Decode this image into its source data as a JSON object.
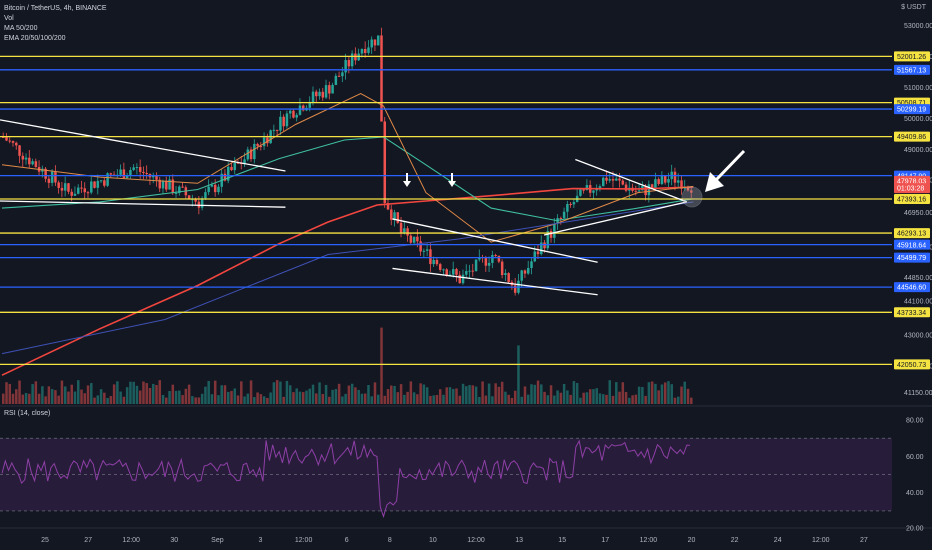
{
  "header": {
    "symbol": "Bitcoin / TetherUS, 4h, BINANCE",
    "vol": "Vol",
    "ma": "MA 50/200",
    "ema": "EMA 20/50/100/200",
    "unit": "$ USDT"
  },
  "rsi_title": "RSI (14, close)",
  "chart_data": {
    "type": "candlestick",
    "price_axis": {
      "range": [
        40900,
        53500
      ],
      "tick_labels": [
        "53000.00",
        "52000.00",
        "51000.00",
        "50000.00",
        "49000.00",
        "48000.00",
        "46950.00",
        "45850.00",
        "44850.00",
        "44100.00",
        "43000.00",
        "42000.00",
        "41150.00"
      ]
    },
    "time_axis": {
      "labels": [
        "25",
        "27",
        "12:00",
        "30",
        "Sep",
        "3",
        "12:00",
        "6",
        "8",
        "10",
        "12:00",
        "13",
        "15",
        "17",
        "12:00",
        "20",
        "22",
        "24",
        "12:00",
        "27"
      ]
    },
    "horizontal_levels": [
      {
        "price": 52001.26,
        "label": "52001.26",
        "color": "#f5e342"
      },
      {
        "price": 51567.13,
        "label": "51567.13",
        "color": "#2962ff"
      },
      {
        "price": 50508.71,
        "label": "50508.71",
        "color": "#f5e342"
      },
      {
        "price": 50299.19,
        "label": "50299.19",
        "color": "#2962ff"
      },
      {
        "price": 49409.86,
        "label": "49409.86",
        "color": "#f5e342"
      },
      {
        "price": 48147.9,
        "label": "48147.90",
        "color": "#2962ff"
      },
      {
        "price": 47393.16,
        "label": "47393.16",
        "color": "#f5e342"
      },
      {
        "price": 46293.13,
        "label": "46293.13",
        "color": "#f5e342"
      },
      {
        "price": 45918.64,
        "label": "45918.64",
        "color": "#2962ff"
      },
      {
        "price": 45499.79,
        "label": "45499.79",
        "color": "#2962ff"
      },
      {
        "price": 44546.6,
        "label": "44546.60",
        "color": "#2962ff"
      },
      {
        "price": 43733.34,
        "label": "43733.34",
        "color": "#f5e342"
      },
      {
        "price": 42050.73,
        "label": "42050.73",
        "color": "#f5e342"
      }
    ],
    "price_badges": [
      {
        "label": "47978.03",
        "color": "#ef5350",
        "price": 47978.03
      },
      {
        "label": "01:03:28",
        "color": "#ef5350",
        "price": 47745
      }
    ],
    "trendlines": [
      {
        "from": [
          0,
          49950
        ],
        "to": [
          0.32,
          48300
        ]
      },
      {
        "from": [
          0,
          47330
        ],
        "to": [
          0.32,
          47130
        ]
      },
      {
        "from": [
          0.44,
          45150
        ],
        "to": [
          0.67,
          44300
        ]
      },
      {
        "from": [
          0.44,
          46750
        ],
        "to": [
          0.67,
          45350
        ]
      },
      {
        "from": [
          0.645,
          48670
        ],
        "to": [
          0.77,
          47300
        ]
      },
      {
        "from": [
          0.61,
          46230
        ],
        "to": [
          0.77,
          47300
        ]
      }
    ],
    "rsi": {
      "range": [
        25,
        80
      ],
      "levels": [
        70,
        50,
        30
      ],
      "tick_labels": [
        "80.00",
        "60.00",
        "40.00",
        "20.00"
      ]
    },
    "colors": {
      "up": "#26a69a",
      "down": "#ef5350",
      "ema_red": "#f2463f",
      "ema_orange": "#e08a48",
      "ema_green": "#3fbf9f",
      "ma_blue": "#3f51b5",
      "rsi_line": "#8e3fa6",
      "rsi_band": "#2a1e3d"
    }
  }
}
